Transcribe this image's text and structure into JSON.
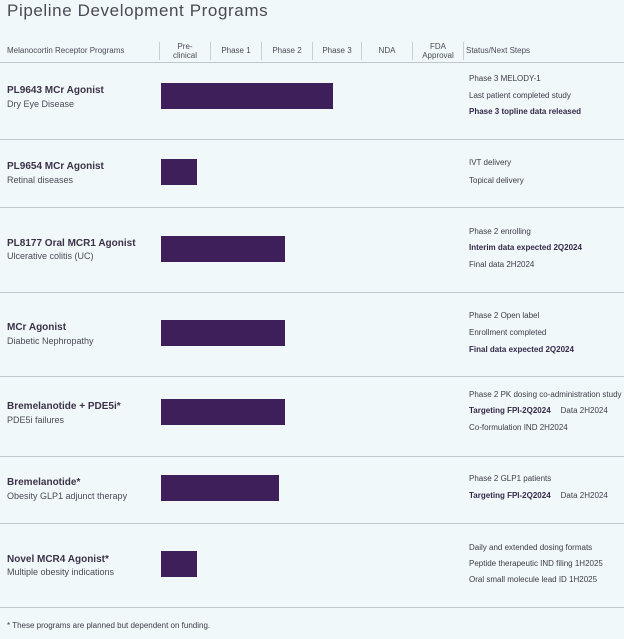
{
  "title": "Pipeline Development Programs",
  "columns": {
    "program": "Melanocortin Receptor Programs",
    "preclinical": "Pre-\nclinical",
    "phase1": "Phase 1",
    "phase2": "Phase 2",
    "phase3": "Phase 3",
    "nda": "NDA",
    "fda": "FDA\nApproval",
    "status": "Status/Next Steps"
  },
  "programs": [
    {
      "name": "PL9643 MCr Agonist",
      "indication": "Dry Eye Disease",
      "stage": "Phase 3",
      "notes": [
        {
          "text": "Phase 3 MELODY-1",
          "bold": false
        },
        {
          "text": "Last patient completed study",
          "bold": false
        },
        {
          "text": "Phase 3 topline data released",
          "bold": true
        }
      ]
    },
    {
      "name": "PL9654 MCr Agonist",
      "indication": "Retinal diseases",
      "stage": "Pre-clinical",
      "notes": [
        {
          "text": "IVT delivery",
          "bold": false
        },
        {
          "text": "Topical delivery",
          "bold": false
        }
      ]
    },
    {
      "name": "PL8177 Oral MCR1 Agonist",
      "indication": "Ulcerative colitis (UC)",
      "stage": "Phase 2",
      "notes": [
        {
          "text": "Phase 2 enrolling",
          "bold": false
        },
        {
          "text": "Interim data expected 2Q2024",
          "bold": true
        },
        {
          "text": "Final data 2H2024",
          "bold": false
        }
      ]
    },
    {
      "name": "MCr Agonist",
      "indication": "Diabetic Nephropathy",
      "stage": "Phase 2",
      "notes": [
        {
          "text": "Phase 2 Open label",
          "bold": false
        },
        {
          "text": "Enrollment completed",
          "bold": false
        },
        {
          "text": "Final data expected 2Q2024",
          "bold": true
        }
      ]
    },
    {
      "name": "Bremelanotide + PDE5i*",
      "indication": "PDE5i failures",
      "stage": "Phase 2",
      "notes": [
        {
          "text": "Phase 2 PK dosing co-administration study",
          "bold": false
        },
        {
          "text": "Targeting FPI-2Q2024",
          "bold": true,
          "extra": "Data 2H2024"
        },
        {
          "text": "Co-formulation IND 2H2024",
          "bold": false
        }
      ]
    },
    {
      "name": "Bremelanotide*",
      "indication": "Obesity GLP1 adjunct therapy",
      "stage": "Phase 2",
      "notes": [
        {
          "text": "Phase 2 GLP1 patients",
          "bold": false
        },
        {
          "text": "Targeting FPI-2Q2024",
          "bold": true,
          "extra": "Data 2H2024"
        }
      ]
    },
    {
      "name": "Novel MCR4 Agonist*",
      "indication": "Multiple obesity indications",
      "stage": "Pre-clinical",
      "notes": [
        {
          "text": "Daily and extended dosing formats",
          "bold": false
        },
        {
          "text": "Peptide therapeutic IND filing 1H2025",
          "bold": false
        },
        {
          "text": "Oral small molecule lead ID 1H2025",
          "bold": false
        }
      ]
    }
  ],
  "footnote": "* These programs are planned but dependent on funding.",
  "colors": {
    "bar": "#3e1f5a",
    "background": "#f1f8fa"
  }
}
